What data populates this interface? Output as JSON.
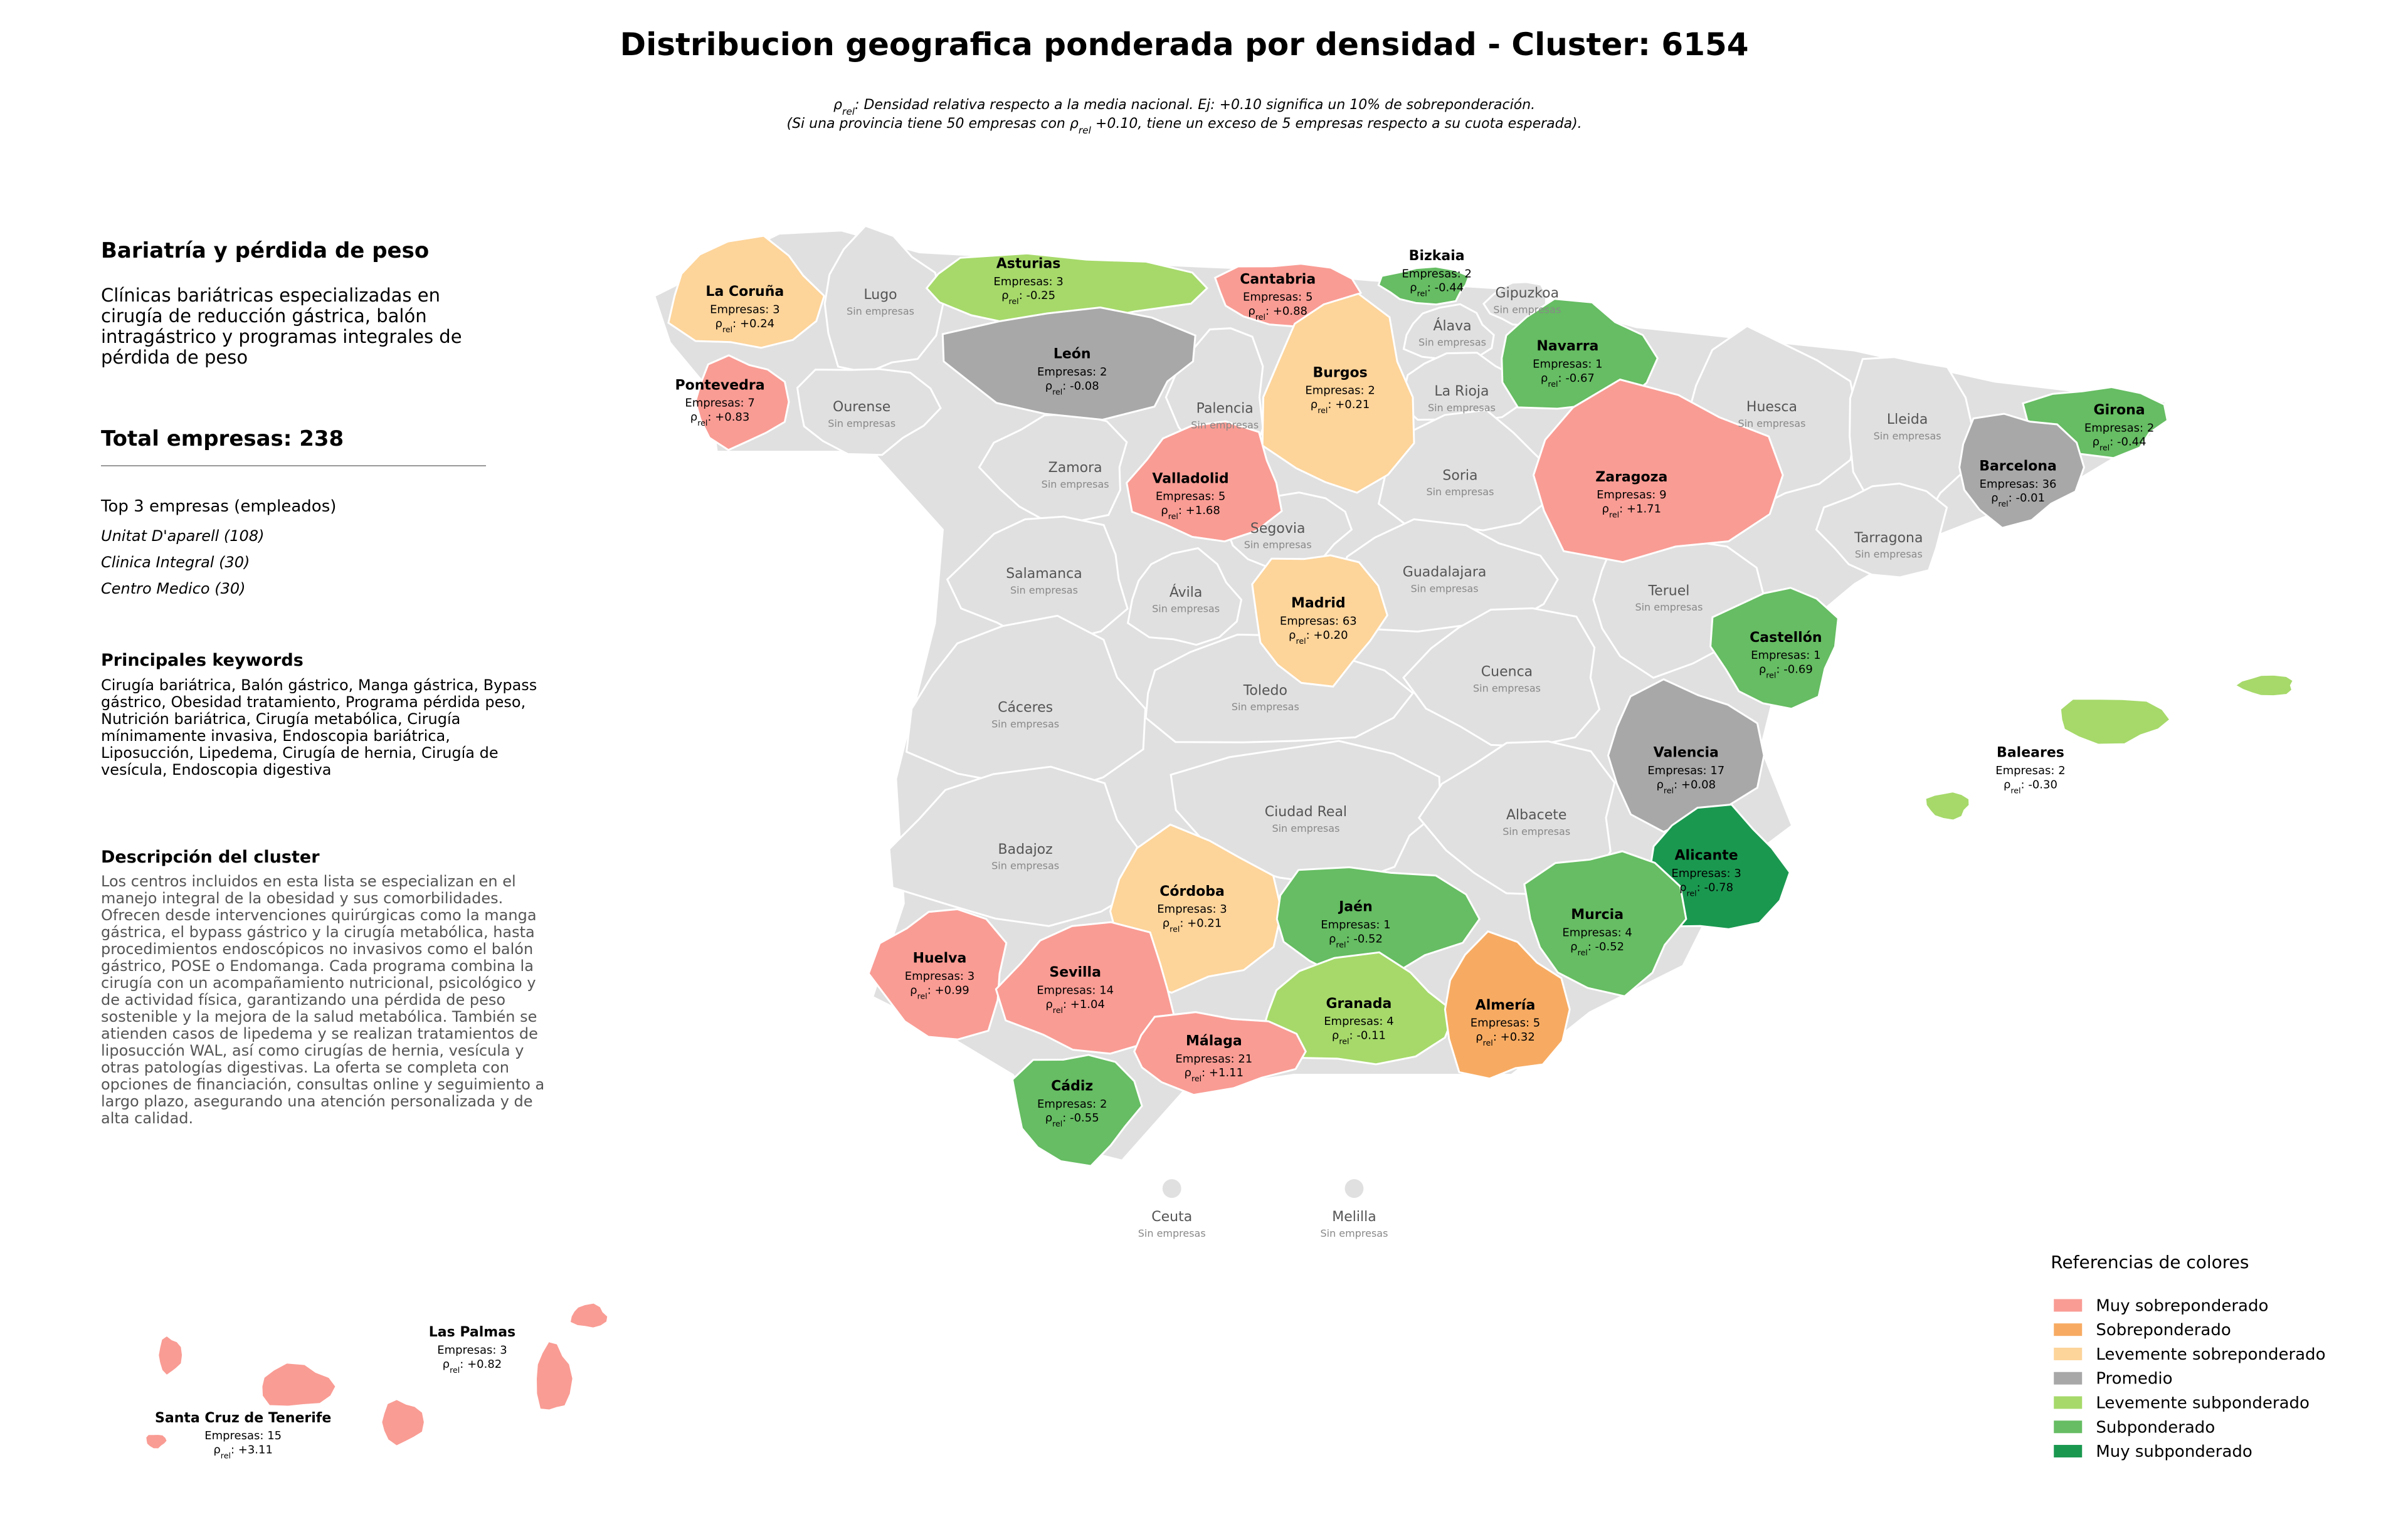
{
  "title": "Distribucion geografica ponderada por densidad - Cluster: 6154",
  "note": {
    "symbol": "ρ",
    "subscript": "rel",
    "line1": ": Densidad relativa respecto a la media nacional. Ej: +0.10 significa un 10% de sobreponderación.",
    "line2_pre": "(Si una provincia tiene 50 empresas con ",
    "line2_post": " +0.10, tiene un exceso de 5 empresas respecto a su cuota esperada)."
  },
  "sidebar": {
    "title": "Bariatría y pérdida de peso",
    "description": "Clínicas bariátricas especializadas en cirugía de reducción gástrica, balón intragástrico y programas integrales de pérdida de peso",
    "total_label": "Total empresas:",
    "total": 238,
    "top_heading": "Top 3 empresas (empleados)",
    "top_items": [
      "Unitat D'aparell (108)",
      "Clinica Integral (30)",
      "Centro Medico (30)"
    ],
    "keywords_heading": "Principales keywords",
    "keywords": "Cirugía bariátrica, Balón gástrico, Manga gástrica, Bypass gástrico, Obesidad tratamiento, Programa pérdida peso, Nutrición bariátrica, Cirugía metabólica, Cirugía mínimamente invasiva, Endoscopia bariátrica, Liposucción, Lipedema, Cirugía de hernia, Cirugía de vesícula, Endoscopia digestiva",
    "cluster_heading": "Descripción del cluster",
    "cluster_text": "Los centros incluidos en esta lista se especializan en el manejo integral de la obesidad y sus comorbilidades. Ofrecen desde intervenciones quirúrgicas como la manga gástrica, el bypass gástrico y la cirugía metabólica, hasta procedimientos endoscópicos no invasivos como el balón gástrico, POSE o Endomanga. Cada programa combina la cirugía con un acompañamiento nutricional, psicológico y de actividad física, garantizando una pérdida de peso sostenible y la mejora de la salud metabólica. También se atienden casos de lipedema y se realizan tratamientos de liposucción WAL, así como cirugías de hernia, vesícula y otras patologías digestivas. La oferta se completa con opciones de financiación, consultas online y seguimiento a largo plazo, asegurando una atención personalizada y de alta calidad."
  },
  "map": {
    "companies_prefix": "Empresas:",
    "rho_symbol": "ρ",
    "rho_subscript": "rel",
    "rho_separator": ":",
    "no_data": "Sin empresas",
    "base_color": "#e0e0e0",
    "provinces": [
      {
        "name": "La Coruña",
        "companies": 3,
        "rho": 0.24,
        "rho_label": "+0.24",
        "class": 2
      },
      {
        "name": "Lugo"
      },
      {
        "name": "Asturias",
        "companies": 3,
        "rho": -0.25,
        "rho_label": "-0.25",
        "class": 4
      },
      {
        "name": "Cantabria",
        "companies": 5,
        "rho": 0.88,
        "rho_label": "+0.88",
        "class": 0
      },
      {
        "name": "Bizkaia",
        "companies": 2,
        "rho": -0.44,
        "rho_label": "-0.44",
        "class": 5
      },
      {
        "name": "Gipuzkoa"
      },
      {
        "name": "Álava"
      },
      {
        "name": "Navarra",
        "companies": 1,
        "rho": -0.67,
        "rho_label": "-0.67",
        "class": 5
      },
      {
        "name": "Pontevedra",
        "companies": 7,
        "rho": 0.83,
        "rho_label": "+0.83",
        "class": 0
      },
      {
        "name": "Ourense"
      },
      {
        "name": "León",
        "companies": 2,
        "rho": -0.08,
        "rho_label": "-0.08",
        "class": 3
      },
      {
        "name": "Palencia"
      },
      {
        "name": "Burgos",
        "companies": 2,
        "rho": 0.21,
        "rho_label": "+0.21",
        "class": 2
      },
      {
        "name": "La Rioja"
      },
      {
        "name": "Huesca"
      },
      {
        "name": "Lleida"
      },
      {
        "name": "Girona",
        "companies": 2,
        "rho": -0.44,
        "rho_label": "-0.44",
        "class": 5
      },
      {
        "name": "Zamora"
      },
      {
        "name": "Valladolid",
        "companies": 5,
        "rho": 1.68,
        "rho_label": "+1.68",
        "class": 0
      },
      {
        "name": "Soria"
      },
      {
        "name": "Zaragoza",
        "companies": 9,
        "rho": 1.71,
        "rho_label": "+1.71",
        "class": 0
      },
      {
        "name": "Barcelona",
        "companies": 36,
        "rho": -0.01,
        "rho_label": "-0.01",
        "class": 3
      },
      {
        "name": "Segovia"
      },
      {
        "name": "Tarragona"
      },
      {
        "name": "Salamanca"
      },
      {
        "name": "Ávila"
      },
      {
        "name": "Guadalajara"
      },
      {
        "name": "Teruel"
      },
      {
        "name": "Madrid",
        "companies": 63,
        "rho": 0.2,
        "rho_label": "+0.20",
        "class": 2
      },
      {
        "name": "Castellón",
        "companies": 1,
        "rho": -0.69,
        "rho_label": "-0.69",
        "class": 5
      },
      {
        "name": "Cuenca"
      },
      {
        "name": "Cáceres"
      },
      {
        "name": "Toledo"
      },
      {
        "name": "Valencia",
        "companies": 17,
        "rho": 0.08,
        "rho_label": "+0.08",
        "class": 3
      },
      {
        "name": "Baleares",
        "companies": 2,
        "rho": -0.3,
        "rho_label": "-0.30",
        "class": 4
      },
      {
        "name": "Ciudad Real"
      },
      {
        "name": "Albacete"
      },
      {
        "name": "Badajoz"
      },
      {
        "name": "Alicante",
        "companies": 3,
        "rho": -0.78,
        "rho_label": "-0.78",
        "class": 6
      },
      {
        "name": "Córdoba",
        "companies": 3,
        "rho": 0.21,
        "rho_label": "+0.21",
        "class": 2
      },
      {
        "name": "Jaén",
        "companies": 1,
        "rho": -0.52,
        "rho_label": "-0.52",
        "class": 5
      },
      {
        "name": "Murcia",
        "companies": 4,
        "rho": -0.52,
        "rho_label": "-0.52",
        "class": 5
      },
      {
        "name": "Huelva",
        "companies": 3,
        "rho": 0.99,
        "rho_label": "+0.99",
        "class": 0
      },
      {
        "name": "Sevilla",
        "companies": 14,
        "rho": 1.04,
        "rho_label": "+1.04",
        "class": 0
      },
      {
        "name": "Granada",
        "companies": 4,
        "rho": -0.11,
        "rho_label": "-0.11",
        "class": 4
      },
      {
        "name": "Almería",
        "companies": 5,
        "rho": 0.32,
        "rho_label": "+0.32",
        "class": 1
      },
      {
        "name": "Málaga",
        "companies": 21,
        "rho": 1.11,
        "rho_label": "+1.11",
        "class": 0
      },
      {
        "name": "Cádiz",
        "companies": 2,
        "rho": -0.55,
        "rho_label": "-0.55",
        "class": 5
      },
      {
        "name": "Ceuta"
      },
      {
        "name": "Melilla"
      },
      {
        "name": "Las Palmas",
        "companies": 3,
        "rho": 0.82,
        "rho_label": "+0.82",
        "class": 0
      },
      {
        "name": "Santa Cruz de Tenerife",
        "companies": 15,
        "rho": 3.11,
        "rho_label": "+3.11",
        "class": 0
      }
    ]
  },
  "legend": {
    "title": "Referencias de colores",
    "items": [
      {
        "name": "Muy sobreponderado",
        "color": "#f99c94"
      },
      {
        "name": "Sobreponderado",
        "color": "#f7ab62"
      },
      {
        "name": "Levemente sobreponderado",
        "color": "#fdd49a"
      },
      {
        "name": "Promedio",
        "color": "#a8a8a8"
      },
      {
        "name": "Levemente subponderado",
        "color": "#a6d96a"
      },
      {
        "name": "Subponderado",
        "color": "#66bd63"
      },
      {
        "name": "Muy subponderado",
        "color": "#1a9850"
      }
    ]
  }
}
